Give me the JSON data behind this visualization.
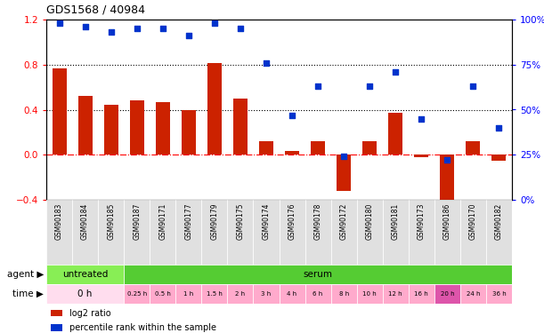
{
  "title": "GDS1568 / 40984",
  "samples": [
    "GSM90183",
    "GSM90184",
    "GSM90185",
    "GSM90187",
    "GSM90171",
    "GSM90177",
    "GSM90179",
    "GSM90175",
    "GSM90174",
    "GSM90176",
    "GSM90178",
    "GSM90172",
    "GSM90180",
    "GSM90181",
    "GSM90173",
    "GSM90186",
    "GSM90170",
    "GSM90182"
  ],
  "log2_ratio": [
    0.77,
    0.52,
    0.44,
    0.48,
    0.47,
    0.4,
    0.81,
    0.5,
    0.12,
    0.03,
    0.12,
    -0.32,
    0.12,
    0.37,
    -0.02,
    -0.48,
    0.12,
    -0.05
  ],
  "pct_rank": [
    98,
    96,
    93,
    95,
    95,
    91,
    98,
    95,
    76,
    47,
    63,
    24,
    63,
    71,
    45,
    22,
    63,
    40
  ],
  "ylim_left": [
    -0.4,
    1.2
  ],
  "ylim_right": [
    0,
    100
  ],
  "yticks_left": [
    -0.4,
    0.0,
    0.4,
    0.8,
    1.2
  ],
  "yticks_right": [
    0,
    25,
    50,
    75,
    100
  ],
  "hlines_dotted": [
    0.4,
    0.8
  ],
  "bar_color": "#cc2200",
  "dot_color": "#0033cc",
  "agent_row": [
    {
      "label": "untreated",
      "start": 0,
      "end": 3,
      "color": "#88ee55"
    },
    {
      "label": "serum",
      "start": 3,
      "end": 18,
      "color": "#55cc33"
    }
  ],
  "time_row": [
    {
      "label": "0 h",
      "start": 0,
      "end": 3,
      "color": "#ffddee"
    },
    {
      "label": "0.25 h",
      "start": 3,
      "end": 4,
      "color": "#ffaacc"
    },
    {
      "label": "0.5 h",
      "start": 4,
      "end": 5,
      "color": "#ffaacc"
    },
    {
      "label": "1 h",
      "start": 5,
      "end": 6,
      "color": "#ffaacc"
    },
    {
      "label": "1.5 h",
      "start": 6,
      "end": 7,
      "color": "#ffaacc"
    },
    {
      "label": "2 h",
      "start": 7,
      "end": 8,
      "color": "#ffaacc"
    },
    {
      "label": "3 h",
      "start": 8,
      "end": 9,
      "color": "#ffaacc"
    },
    {
      "label": "4 h",
      "start": 9,
      "end": 10,
      "color": "#ffaacc"
    },
    {
      "label": "6 h",
      "start": 10,
      "end": 11,
      "color": "#ffaacc"
    },
    {
      "label": "8 h",
      "start": 11,
      "end": 12,
      "color": "#ffaacc"
    },
    {
      "label": "10 h",
      "start": 12,
      "end": 13,
      "color": "#ffaacc"
    },
    {
      "label": "12 h",
      "start": 13,
      "end": 14,
      "color": "#ffaacc"
    },
    {
      "label": "16 h",
      "start": 14,
      "end": 15,
      "color": "#ffaacc"
    },
    {
      "label": "20 h",
      "start": 15,
      "end": 16,
      "color": "#dd55aa"
    },
    {
      "label": "24 h",
      "start": 16,
      "end": 17,
      "color": "#ffaacc"
    },
    {
      "label": "36 h",
      "start": 17,
      "end": 18,
      "color": "#ffaacc"
    }
  ],
  "legend_items": [
    {
      "label": "log2 ratio",
      "color": "#cc2200"
    },
    {
      "label": "percentile rank within the sample",
      "color": "#0033cc"
    }
  ]
}
